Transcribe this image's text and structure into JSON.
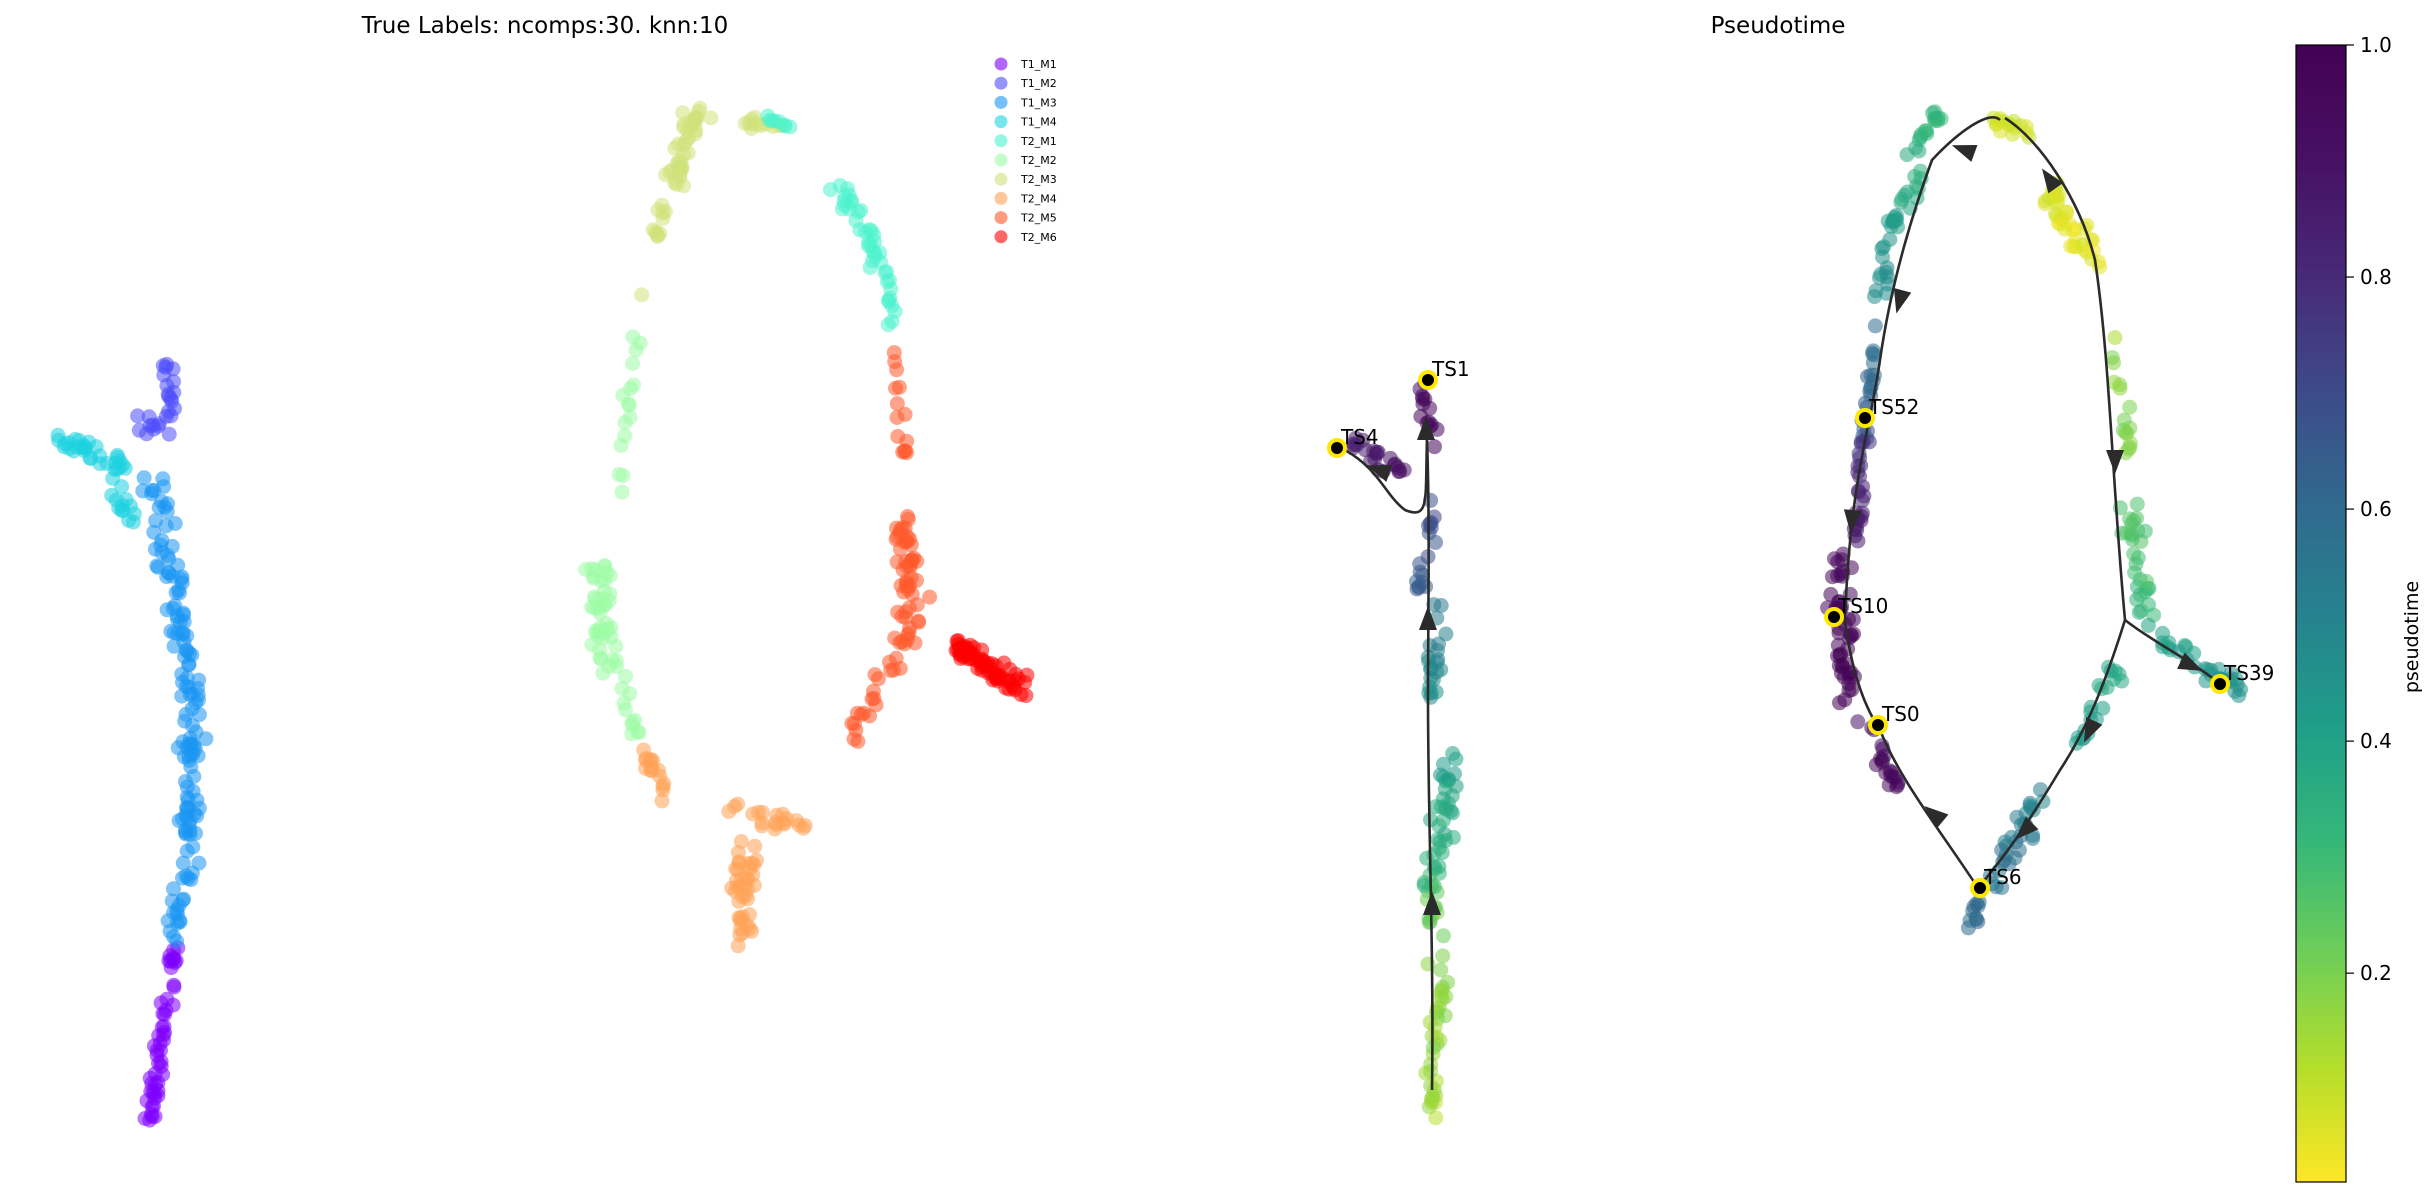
{
  "chart_data": [
    {
      "type": "scatter",
      "title": "True Labels: ncomps:30. knn:10",
      "legend": {
        "placement": "top-right",
        "entries": [
          {
            "label": "T1_M1",
            "color": "#8000ff"
          },
          {
            "label": "T1_M2",
            "color": "#4c4cfc"
          },
          {
            "label": "T1_M3",
            "color": "#1996f3"
          },
          {
            "label": "T1_M4",
            "color": "#1ed2e0"
          },
          {
            "label": "T2_M1",
            "color": "#4cf2ce"
          },
          {
            "label": "T2_M2",
            "color": "#9cfca4"
          },
          {
            "label": "T2_M3",
            "color": "#cfe27a"
          },
          {
            "label": "T2_M4",
            "color": "#ffa256"
          },
          {
            "label": "T2_M5",
            "color": "#ff5a2c"
          },
          {
            "label": "T2_M6",
            "color": "#ff0000"
          }
        ]
      },
      "axes_visible": false,
      "grid": false
    },
    {
      "type": "scatter",
      "title": "Pseudotime",
      "colormap": "viridis_r",
      "colorbar": {
        "label": "pseudotime",
        "ticks": [
          "0.2",
          "0.4",
          "0.6",
          "0.8",
          "1.0"
        ],
        "range": [
          0.02,
          1.0
        ]
      },
      "terminal_labels": [
        "TS1",
        "TS4",
        "TS52",
        "TS10",
        "TS0",
        "TS39",
        "TS6"
      ],
      "trajectory_arrows": true,
      "axes_visible": false,
      "grid": false
    }
  ]
}
